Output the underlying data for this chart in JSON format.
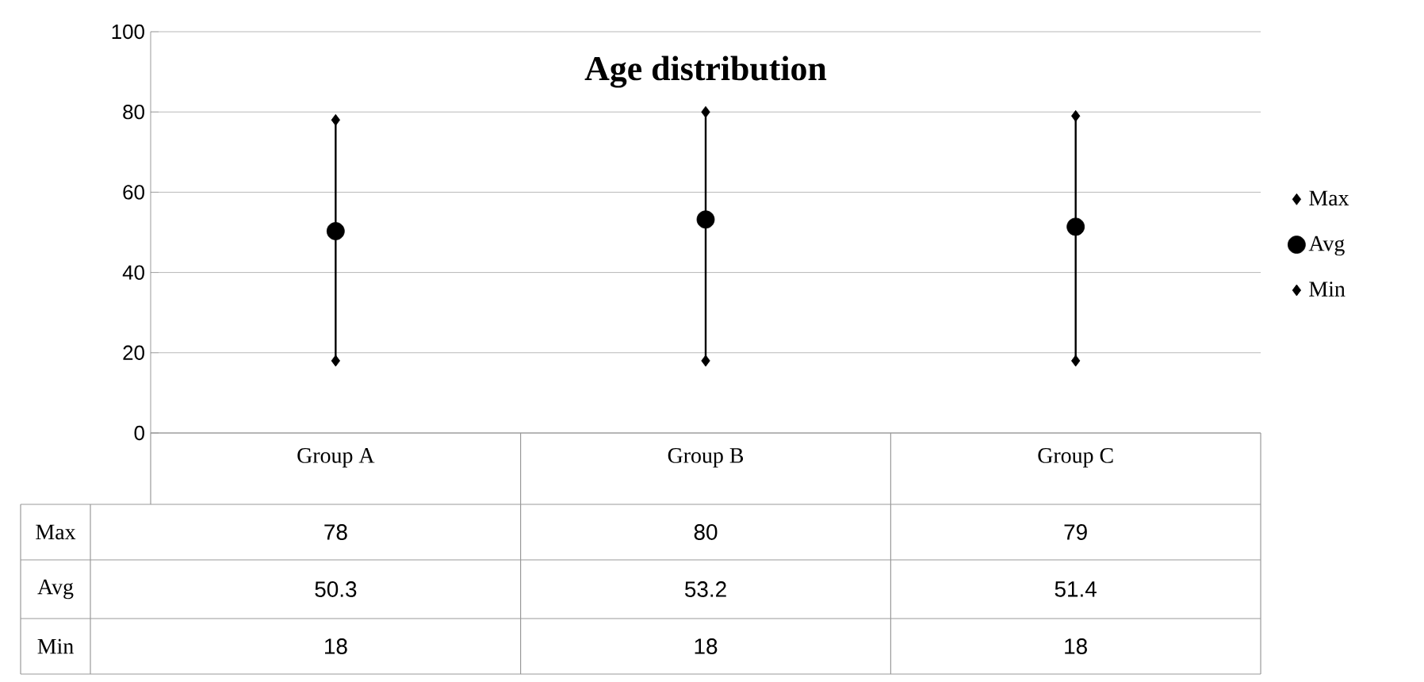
{
  "chart_data": {
    "type": "scatter",
    "title": "Age distribution",
    "categories": [
      "Group A",
      "Group B",
      "Group C"
    ],
    "series": [
      {
        "name": "Max",
        "color": "#000000",
        "marker": "diamond",
        "values": [
          78,
          80,
          79
        ]
      },
      {
        "name": "Avg",
        "color": "#000000",
        "marker": "circle",
        "values": [
          50.3,
          53.2,
          51.4
        ],
        "errors": [
          [
            18,
            78
          ],
          [
            18,
            80
          ],
          [
            18,
            79
          ]
        ]
      },
      {
        "name": "Min",
        "color": "#000000",
        "marker": "diamond",
        "values": [
          18,
          18,
          18
        ]
      }
    ],
    "ylim": [
      0,
      100
    ],
    "yticks": [
      0,
      20,
      40,
      60,
      80,
      100
    ],
    "grid": "y",
    "legend": "right",
    "data_labels": true
  }
}
